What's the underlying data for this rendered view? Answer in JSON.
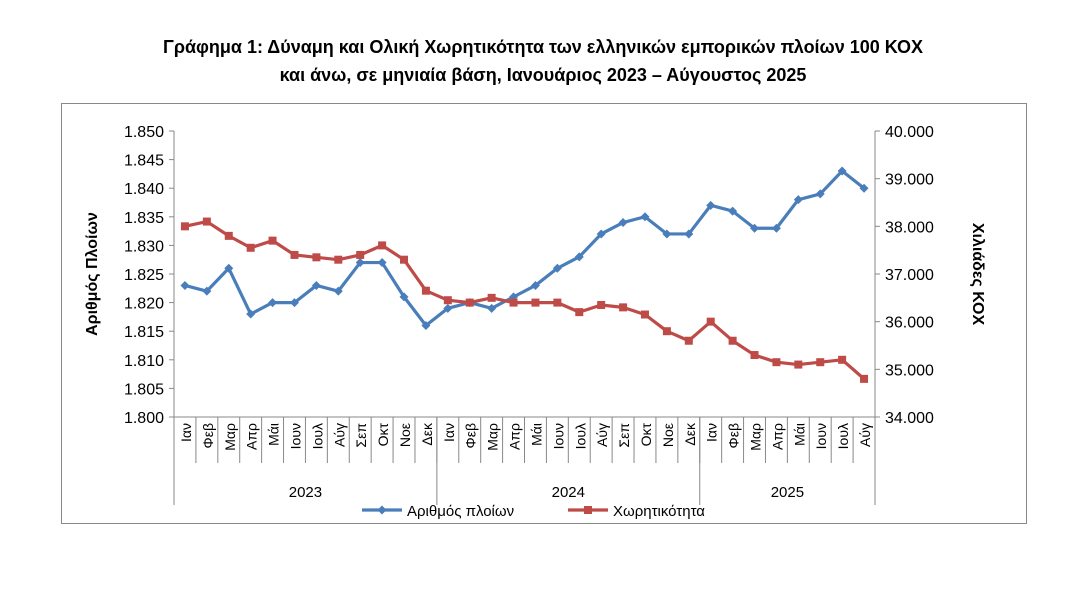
{
  "chart_data": {
    "type": "line",
    "title_lines": [
      "Γράφημα 1: Δύναμη και Ολική Χωρητικότητα των ελληνικών εμπορικών πλοίων 100 ΚΟΧ",
      "και άνω, σε μηνιαία βάση, Ιανουάριος 2023 – Αύγουστος 2025"
    ],
    "ylabel_left": "Αριθμός Πλοίων",
    "ylabel_right": "Χιλιάδες ΚΟΧ",
    "y_left": {
      "min": 1800,
      "max": 1850,
      "step": 5,
      "tick_labels": [
        "1.800",
        "1.805",
        "1.810",
        "1.815",
        "1.820",
        "1.825",
        "1.830",
        "1.835",
        "1.840",
        "1.845",
        "1.850"
      ]
    },
    "y_right": {
      "min": 34000,
      "max": 40000,
      "step": 1000,
      "tick_labels": [
        "34.000",
        "35.000",
        "36.000",
        "37.000",
        "38.000",
        "39.000",
        "40.000"
      ]
    },
    "categories": [
      "Ιαν",
      "Φεβ",
      "Μαρ",
      "Απρ",
      "Μάι",
      "Ιουν",
      "Ιουλ",
      "Αύγ",
      "Σεπ",
      "Οκτ",
      "Νοε",
      "Δεκ",
      "Ιαν",
      "Φεβ",
      "Μαρ",
      "Απρ",
      "Μάι",
      "Ιουν",
      "Ιουλ",
      "Αύγ",
      "Σεπ",
      "Οκτ",
      "Νοε",
      "Δεκ",
      "Ιαν",
      "Φεβ",
      "Μαρ",
      "Απρ",
      "Μάι",
      "Ιουν",
      "Ιουλ",
      "Αύγ"
    ],
    "groups": [
      {
        "label": "2023",
        "start": 0,
        "count": 12
      },
      {
        "label": "2024",
        "start": 12,
        "count": 12
      },
      {
        "label": "2025",
        "start": 24,
        "count": 8
      }
    ],
    "series": [
      {
        "name": "Αριθμός πλοίων",
        "axis": "left",
        "color": "#4a7ebb",
        "values": [
          1823,
          1822,
          1826,
          1818,
          1820,
          1820,
          1823,
          1822,
          1827,
          1827,
          1821,
          1816,
          1819,
          1820,
          1819,
          1821,
          1823,
          1826,
          1828,
          1832,
          1834,
          1835,
          1832,
          1832,
          1837,
          1836,
          1833,
          1833,
          1838,
          1839,
          1843,
          1840
        ]
      },
      {
        "name": "Χωρητικότητα",
        "axis": "right",
        "color": "#be4b48",
        "values": [
          38000,
          38100,
          37800,
          37550,
          37700,
          37400,
          37350,
          37300,
          37400,
          37600,
          37300,
          36650,
          36450,
          36400,
          36500,
          36400,
          36400,
          36400,
          36200,
          36350,
          36300,
          36150,
          35800,
          35600,
          36000,
          35600,
          35300,
          35150,
          35100,
          35150,
          35200,
          34800
        ]
      }
    ],
    "legend_position": "bottom",
    "grid": false
  }
}
